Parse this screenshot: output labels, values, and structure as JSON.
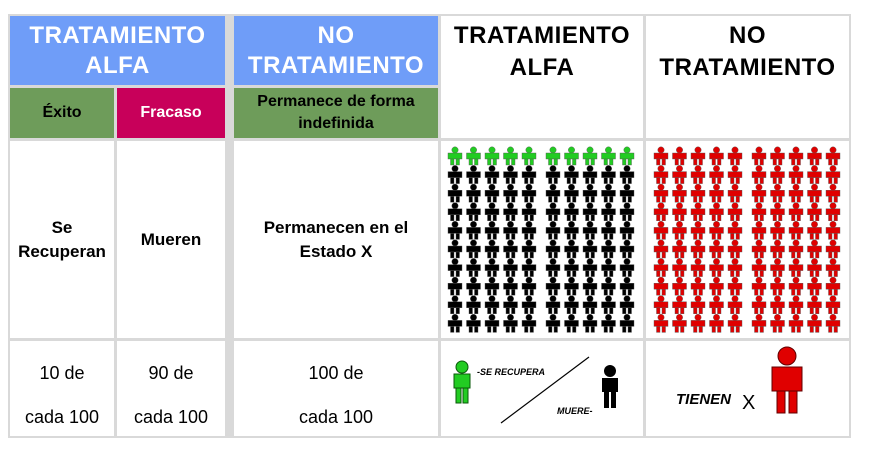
{
  "headers": {
    "tratamiento_alfa": "TRATAMIENTO ALFA",
    "no_tratamiento": "NO TRATAMIENTO",
    "tratamiento_alfa_pictures": "TRATAMIENTO ALFA",
    "no_tratamiento_pictures": "NO TRATAMIENTO"
  },
  "subheaders": {
    "exito": "Éxito",
    "fracaso": "Fracaso",
    "permanece": "Permanece de forma indefinida"
  },
  "outcomes": {
    "exito": "Se Recuperan",
    "fracaso": "Mueren",
    "permanece": "Permanecen en el Estado X"
  },
  "stats": {
    "exito": {
      "count": "10 de",
      "base": "cada 100"
    },
    "fracaso": {
      "count": "90 de",
      "base": "cada 100"
    },
    "permanece": {
      "count": "100 de",
      "base": "cada 100"
    }
  },
  "pictograms": {
    "alfa": {
      "recovered": 10,
      "died": 90,
      "recovered_color": "#22cc22",
      "died_color": "#000000"
    },
    "no_tratamiento": {
      "state_x": 100,
      "color": "#e00000"
    }
  },
  "legend": {
    "recovered_label": "-SE RECUPERA",
    "died_label": "MUERE-",
    "tienen_label": "TIENEN",
    "x_label": "X"
  },
  "colors": {
    "header_blue": "#6f9df8",
    "green": "#6e9c5a",
    "magenta": "#c8005a"
  }
}
